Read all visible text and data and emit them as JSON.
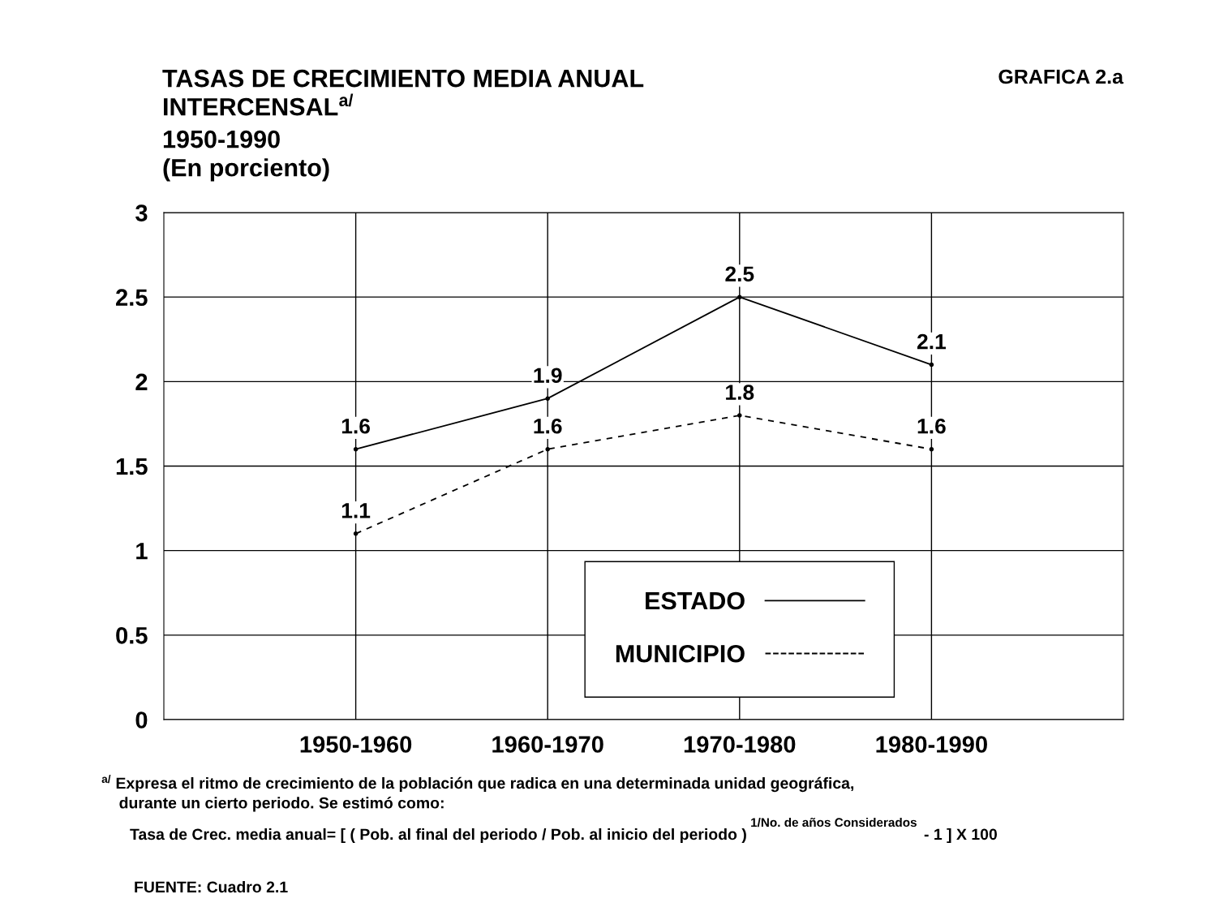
{
  "chart_data": {
    "type": "line",
    "title": "TASAS DE CRECIMIENTO MEDIA ANUAL\nINTERCENSAL$^{a/}$",
    "subtitle": "1950-1990\n(En porciento)",
    "categories": [
      "1950-1960",
      "1960-1970",
      "1970-1980",
      "1980-1990"
    ],
    "series": [
      {
        "name": "ESTADO",
        "color": "#000000",
        "values": [
          1.6,
          1.9,
          2.5,
          2.1
        ],
        "line_style": "solid"
      },
      {
        "name": "MUNICIPIO",
        "color": "#000000",
        "values": [
          1.1,
          1.6,
          1.8,
          1.6
        ],
        "line_style": "dashed"
      }
    ],
    "ylim": [
      0,
      3
    ],
    "yticks": [
      0,
      0.5,
      1,
      1.5,
      2,
      2.5,
      3
    ],
    "grid": true,
    "legend": "bottom",
    "marker": "circle",
    "data_labels": true,
    "annotations": [
      "GRAFICA 2.a",
      "$^{a/}$ Expresa el ritmo de crecimiento de la población que radica en una determinada unidad geográfica,\n    durante un cierto periodo. Se estimó como:",
      "Tasa de Crec. media anual= [ ( Pob. al final del periodo / Pob. al inicio del periodo )",
      "1/No. de años Considerados",
      "- 1 ] X 100",
      "FUENTE: Cuadro 2.1"
    ]
  }
}
